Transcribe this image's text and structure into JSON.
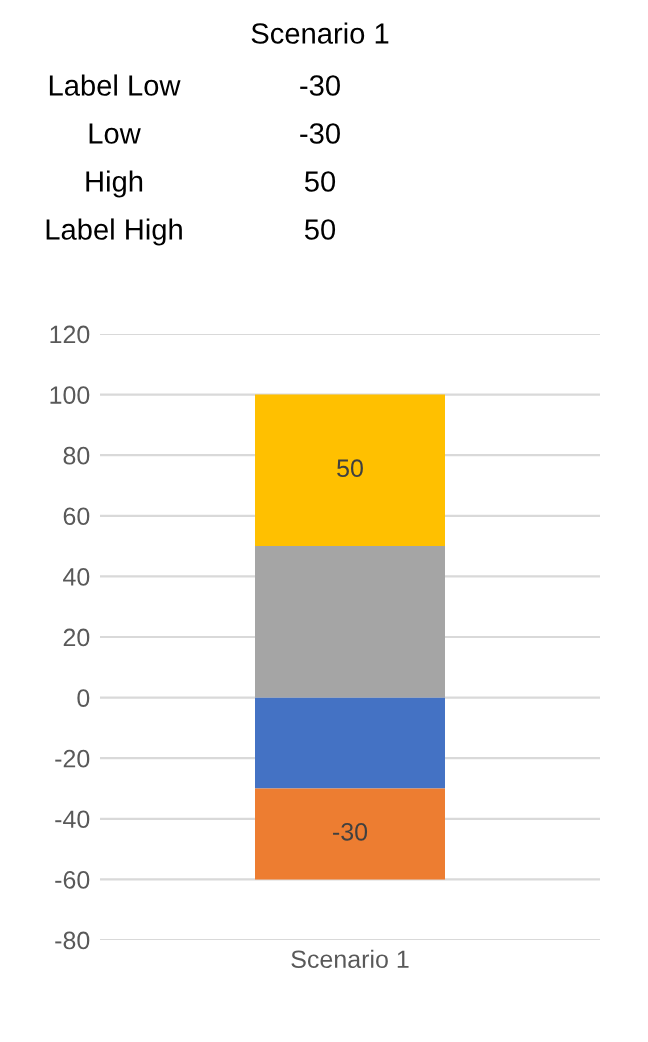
{
  "chart_data": [
    {
      "type": "other",
      "annotations": [
        "Scenario 1",
        "Label Low",
        "-30",
        "Low",
        "-30",
        "High",
        "50",
        "Label High",
        "50"
      ]
    },
    {
      "type": "bar",
      "stacked": true,
      "categories": [
        "Scenario 1"
      ],
      "series": [
        {
          "color": "#4472c4",
          "values": [
            -30
          ]
        },
        {
          "color": "#ed7d31",
          "values": [
            -30
          ],
          "value_labels": [
            "-30"
          ]
        },
        {
          "color": "#a5a5a5",
          "values": [
            50
          ]
        },
        {
          "color": "#ffc000",
          "values": [
            50
          ],
          "value_labels": [
            "50"
          ]
        }
      ],
      "ylim": [
        -80,
        120
      ],
      "yticks": [
        -80,
        -60,
        -40,
        -20,
        0,
        20,
        40,
        60,
        80,
        100,
        120
      ],
      "grid": "y",
      "legend": false
    }
  ]
}
